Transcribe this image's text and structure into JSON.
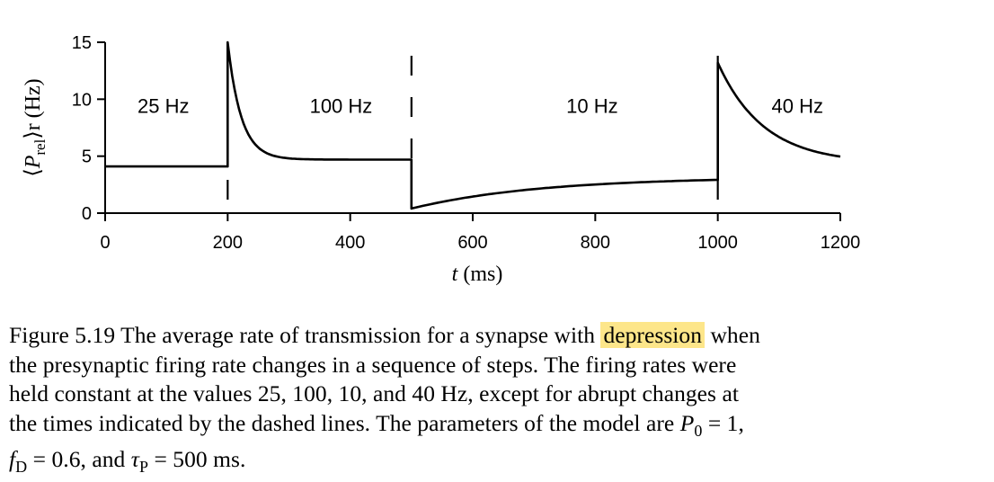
{
  "chart_data": {
    "type": "line",
    "xlabel_var": "t",
    "xlabel_unit": "(ms)",
    "ylabel_parts": [
      "⟨",
      "P",
      "rel",
      "⟩r (Hz)"
    ],
    "xlim": [
      0,
      1200
    ],
    "ylim": [
      0,
      15
    ],
    "xticks": [
      0,
      200,
      400,
      600,
      800,
      1000,
      1200
    ],
    "yticks": [
      0,
      5,
      10,
      15
    ],
    "grid": false,
    "step_times": [
      200,
      500,
      1000
    ],
    "rate_annotations": [
      {
        "text": "25 Hz",
        "x": 95,
        "y": 8.8
      },
      {
        "text": "100 Hz",
        "x": 385,
        "y": 8.8
      },
      {
        "text": "10 Hz",
        "x": 795,
        "y": 8.8
      },
      {
        "text": "40 Hz",
        "x": 1130,
        "y": 8.8
      }
    ],
    "segments": [
      {
        "rate_hz": 25,
        "t_start": 0,
        "t_end": 200,
        "y_start": 4.1,
        "y_end": 4.1
      },
      {
        "rate_hz": 100,
        "t_start": 200,
        "t_end": 500,
        "y_start": 15.0,
        "y_end": 4.7
      },
      {
        "rate_hz": 10,
        "t_start": 500,
        "t_end": 1000,
        "y_start": 0.4,
        "y_end": 3.0
      },
      {
        "rate_hz": 40,
        "t_start": 1000,
        "t_end": 1200,
        "y_start": 13.2,
        "y_end": 4.7
      }
    ]
  },
  "caption": {
    "lines": [
      [
        "Figure 5.19 The average rate of transmission for a synapse with ",
        {
          "hl": "depression"
        },
        " when"
      ],
      [
        "the presynaptic firing rate changes in a sequence of steps.  The firing rates were"
      ],
      [
        "held constant at the values 25, 100, 10, and 40 Hz, except for abrupt changes at"
      ],
      [
        "the times indicated by the dashed lines. The parameters of the model are ",
        {
          "i": "P"
        },
        {
          "sub": "0"
        },
        " = 1,"
      ],
      [
        {
          "i": "f"
        },
        {
          "sub": "D"
        },
        " = 0.6, and ",
        {
          "i": "τ"
        },
        {
          "sub": "P"
        },
        " = 500 ms."
      ]
    ]
  }
}
